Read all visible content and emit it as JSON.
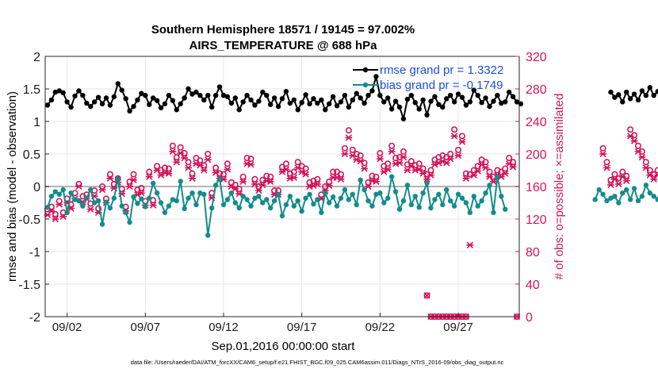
{
  "chart_data": {
    "type": "line",
    "title_line1": "Southern Hemisphere 18571 / 19145 = 97.002%",
    "title_line2": "AIRS_TEMPERATURE @ 688 hPa",
    "xlabel": "Sep.01,2016 00:00:00 start",
    "ylabel_left": "rmse and bias (model - observation)",
    "ylabel_right": "# of obs: o=possible; ×=assimilated",
    "footer": "data file: /Users/raeder/DAI/ATM_forcXX/CAM6_setup/f.e21.FHIST_BGC.f09_025.CAM6assim.011/Diags_NTrS_2016-09/obs_diag_output.nc",
    "xlim": [
      0.6,
      30.9
    ],
    "ylim_left": [
      -2,
      2
    ],
    "ylim_right": [
      0,
      320
    ],
    "x_ticks": [
      2,
      7,
      12,
      17,
      22,
      27
    ],
    "x_tick_labels": [
      "09/02",
      "09/07",
      "09/12",
      "09/17",
      "09/22",
      "09/27"
    ],
    "y_left_ticks": [
      "2",
      "1.5",
      "1",
      "0.5",
      "0",
      "-0.5",
      "-1",
      "-1.5",
      "-2"
    ],
    "y_right_ticks": [
      "320",
      "280",
      "240",
      "200",
      "160",
      "120",
      "80",
      "40",
      "0"
    ],
    "zero_line": 0,
    "legend": [
      {
        "label": "rmse grand pr = 1.3322",
        "color": "#000000"
      },
      {
        "label": "bias grand pr = -0.1749",
        "color": "#148c8c"
      }
    ],
    "colors": {
      "rmse": "#000000",
      "bias": "#148c8c",
      "obs": "#d4145a",
      "axis_right": "#d4145a",
      "zero_line": "#b3b3b3"
    },
    "x_start": 0.75,
    "x_step": 0.25,
    "series": [
      {
        "name": "rmse",
        "segments": [
          [
            1.25,
            1.33,
            1.45,
            1.47,
            1.44,
            1.3,
            1.22,
            1.39,
            1.47,
            1.4,
            1.28,
            1.23,
            1.3,
            1.37,
            1.27,
            1.36,
            1.25,
            1.38,
            1.58,
            1.48,
            1.35,
            1.16,
            1.23,
            1.33,
            1.43,
            1.4,
            1.26,
            1.36,
            1.32,
            1.21,
            1.27,
            1.4,
            1.32,
            1.18,
            1.27,
            1.36,
            1.5,
            1.42,
            1.45,
            1.4,
            1.33,
            1.4,
            1.22,
            1.4,
            1.53,
            1.4,
            1.38,
            1.28,
            1.36,
            1.18,
            1.3,
            1.4,
            1.33,
            1.25,
            1.31,
            1.45,
            1.4,
            1.26,
            1.36,
            1.23,
            1.35,
            1.46,
            1.28,
            1.33,
            1.18,
            1.29,
            1.41,
            1.27,
            1.35,
            1.28,
            1.33,
            1.18,
            1.27,
            1.38,
            1.24,
            1.3,
            1.4,
            1.22,
            1.33,
            1.43,
            1.36,
            1.28,
            1.4,
            1.47,
            1.69,
            1.4,
            1.3,
            1.36,
            1.19,
            1.31,
            1.22,
            1.04,
            1.34,
            1.4,
            1.29,
            1.19,
            1.33,
            1.1,
            1.31,
            1.38,
            1.26,
            1.22,
            1.35,
            1.4,
            1.3,
            1.42,
            1.37,
            1.25,
            1.3,
            1.48,
            1.4,
            1.29,
            1.36,
            1.23,
            1.31,
            1.4,
            1.28,
            1.3,
            1.45,
            1.38,
            1.3,
            1.27
          ],
          null,
          null,
          null,
          null,
          null,
          null,
          null,
          null,
          null,
          null,
          null,
          null,
          null,
          null,
          null,
          null,
          null,
          null,
          null,
          null,
          null,
          null,
          [
            1.45,
            1.37,
            1.41,
            1.3,
            1.45,
            1.35,
            1.42,
            1.33,
            1.47,
            1.4,
            1.52,
            1.4,
            1.46,
            1.4,
            1.34,
            1.38,
            1.6,
            1.33,
            1.32,
            1.3
          ]
        ]
      },
      {
        "name": "bias",
        "segments": [
          [
            -0.32,
            -0.15,
            -0.08,
            -0.12,
            -0.05,
            -0.4,
            -0.1,
            -0.2,
            -0.22,
            -0.3,
            -0.18,
            -0.05,
            -0.25,
            -0.22,
            -0.58,
            -0.24,
            -0.33,
            -0.18,
            0.12,
            -0.3,
            -0.4,
            -0.55,
            -0.16,
            -0.26,
            -0.19,
            -0.31,
            -0.18,
            0.05,
            -0.1,
            -0.25,
            -0.4,
            -0.3,
            -0.2,
            -0.22,
            0.08,
            -0.34,
            -0.18,
            -0.1,
            -0.28,
            -0.1,
            -0.12,
            -0.75,
            -0.33,
            0.02,
            0.12,
            -0.28,
            -0.2,
            -0.1,
            -0.25,
            -0.33,
            -0.15,
            -0.2,
            -0.3,
            -0.18,
            -0.15,
            -0.25,
            -0.2,
            -0.33,
            -0.22,
            -0.12,
            -0.45,
            -0.28,
            -0.15,
            -0.3,
            -0.22,
            -0.38,
            -0.18,
            -0.12,
            -0.27,
            -0.2,
            -0.4,
            -0.1,
            -0.25,
            -0.16,
            -0.3,
            -0.18,
            -0.05,
            -0.2,
            -0.12,
            -0.28,
            0.1,
            -0.05,
            -0.22,
            -0.3,
            -0.12,
            -0.1,
            -0.25,
            -0.18,
            0.15,
            -0.08,
            -0.35,
            -0.22,
            0.02,
            -0.28,
            -0.15,
            -0.32,
            -0.1,
            0.05,
            -0.33,
            -0.2,
            -0.12,
            -0.28,
            -0.05,
            -0.22,
            -0.3,
            -0.12,
            -0.18,
            -0.25,
            -0.4,
            -0.15,
            -0.3,
            -0.22,
            -0.1,
            0.02,
            -0.4,
            0.15,
            -0.15,
            -0.35
          ],
          null,
          null,
          null,
          null,
          null,
          null,
          null,
          null,
          null,
          null,
          null,
          null,
          null,
          null,
          null,
          null,
          null,
          null,
          null,
          null,
          null,
          null,
          [
            -0.2,
            -0.05,
            -0.12,
            -0.22,
            -0.18,
            -0.15,
            -0.25,
            -0.1,
            -0.05,
            -0.2,
            -0.03,
            -0.22,
            -0.15,
            0.02,
            -0.1,
            -0.15,
            -0.2,
            0.05,
            -0.2,
            -0.18
          ]
        ]
      },
      {
        "name": "possible",
        "segments": [
          [
            132,
            135,
            126,
            142,
            128,
            145,
            138,
            152,
            163,
            148,
            150,
            139,
            155,
            133,
            160,
            145,
            175,
            163,
            170,
            157,
            135,
            166,
            175,
            156,
            158,
            142,
            178,
            143,
            185,
            180,
            183,
            182,
            210,
            196,
            208,
            201,
            190,
            176,
            195,
            192,
            186,
            200,
            152,
            183,
            176,
            175,
            188,
            165,
            162,
            157,
            172,
            195,
            194,
            169,
            160,
            168,
            173,
            172,
            155,
            155,
            184,
            188,
            176,
            178,
            190,
            185,
            182,
            165,
            167,
            169,
            150,
            160,
            166,
            178,
            178,
            175,
            207,
            229,
            205,
            200,
            198,
            189,
            165,
            173,
            172,
            201,
            185,
            188,
            210,
            195,
            196,
            203,
            187,
            191,
            186,
            188,
            182,
            175,
            180,
            193,
            196,
            198,
            196,
            200,
            230,
            205,
            222,
            176,
            175,
            180,
            185,
            193,
            190,
            178,
            172,
            180,
            178,
            182,
            195,
            190
          ],
          null,
          null,
          null,
          null,
          null,
          null,
          null,
          null,
          null,
          null,
          null,
          null,
          null,
          null,
          null,
          null,
          null,
          null,
          null,
          null,
          null,
          null,
          [
            207,
            190,
            168,
            175,
            170,
            178,
            173,
            230,
            223,
            210,
            203,
            190,
            180,
            175,
            180,
            193,
            210,
            185,
            213,
            197
          ]
        ]
      },
      {
        "name": "assimilated",
        "segments": [
          [
            125,
            130,
            120,
            138,
            123,
            140,
            133,
            145,
            160,
            141,
            145,
            132,
            148,
            128,
            156,
            140,
            170,
            158,
            165,
            151,
            130,
            160,
            168,
            150,
            152,
            137,
            172,
            137,
            180,
            174,
            177,
            176,
            203,
            190,
            201,
            195,
            183,
            170,
            188,
            186,
            180,
            193,
            146,
            177,
            170,
            169,
            181,
            160,
            157,
            151,
            166,
            188,
            187,
            163,
            155,
            162,
            167,
            166,
            150,
            150,
            178,
            181,
            170,
            171,
            183,
            178,
            175,
            160,
            161,
            163,
            145,
            155,
            161,
            171,
            171,
            169,
            200,
            220,
            198,
            193,
            191,
            182,
            160,
            167,
            166,
            194,
            178,
            181,
            203,
            188,
            189,
            196,
            180,
            185,
            180,
            181,
            176,
            169,
            174,
            187,
            189,
            191,
            189,
            194,
            222,
            198,
            215,
            170,
            88,
            174,
            179,
            187,
            183,
            172,
            166,
            174,
            172,
            176,
            188,
            184
          ],
          null,
          null,
          null,
          null,
          null,
          null,
          null,
          null,
          null,
          null,
          null,
          null,
          null,
          null,
          null,
          null,
          null,
          null,
          null,
          null,
          null,
          null,
          [
            200,
            183,
            162,
            169,
            163,
            172,
            167,
            222,
            216,
            203,
            196,
            183,
            174,
            169,
            174,
            187,
            203,
            179,
            206,
            191
          ]
        ]
      },
      {
        "name": "zero_obs",
        "x": [
          25.25,
          25.5,
          25.75,
          26.0,
          26.25,
          26.5,
          26.75,
          27.0,
          27.25,
          27.5,
          30.75
        ],
        "values": [
          0,
          0,
          0,
          0,
          0,
          0,
          0,
          0,
          0,
          0,
          0
        ]
      },
      {
        "name": "sparse_obs",
        "x": [
          25.0
        ],
        "values": [
          26
        ]
      }
    ]
  }
}
